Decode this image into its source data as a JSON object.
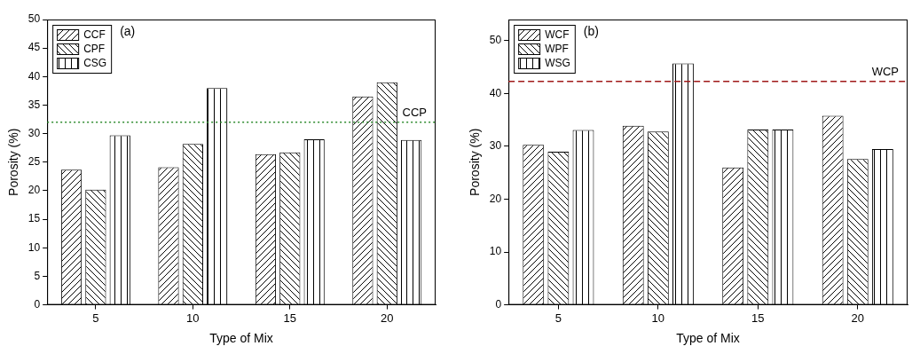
{
  "chart_data": [
    {
      "type": "bar",
      "title": "(a)",
      "x_label": "Type of Mix",
      "y_label": "Porosity (%)",
      "categories": [
        "5",
        "10",
        "15",
        "20"
      ],
      "series": [
        {
          "name": "CCF",
          "color": "#000000",
          "values": [
            23.7,
            24.1,
            26.4,
            36.5
          ]
        },
        {
          "name": "CPF",
          "color": "#000000",
          "values": [
            20.2,
            28.2,
            26.7,
            39.0
          ]
        },
        {
          "name": "CSG",
          "color": "#000000",
          "values": [
            29.7,
            38.0,
            29.0,
            28.9
          ]
        }
      ],
      "annotations": [
        {
          "text": "CCP",
          "y": 32,
          "color": "#2e8b2e",
          "line_style": "dotted"
        }
      ],
      "ylim": [
        0,
        50
      ],
      "yticks": [
        0,
        5,
        10,
        15,
        20,
        25,
        30,
        35,
        40,
        45,
        50
      ],
      "grid": false,
      "legend": "upper left"
    },
    {
      "type": "bar",
      "title": "(b)",
      "x_label": "Type of Mix",
      "y_label": "Porosity (%)",
      "categories": [
        "5",
        "10",
        "15",
        "20"
      ],
      "series": [
        {
          "name": "WCF",
          "color": "#000000",
          "values": [
            30.3,
            33.9,
            26.0,
            35.8
          ]
        },
        {
          "name": "WPF",
          "color": "#000000",
          "values": [
            29.0,
            32.8,
            33.2,
            27.6
          ]
        },
        {
          "name": "WSG",
          "color": "#000000",
          "values": [
            33.1,
            45.7,
            33.2,
            29.5
          ]
        }
      ],
      "annotations": [
        {
          "text": "WCP",
          "y": 42.3,
          "color": "#a01818",
          "line_style": "dashed"
        }
      ],
      "ylim": [
        0,
        54
      ],
      "yticks": [
        0,
        10,
        20,
        30,
        40,
        50
      ],
      "grid": false,
      "legend": "upper left"
    }
  ]
}
